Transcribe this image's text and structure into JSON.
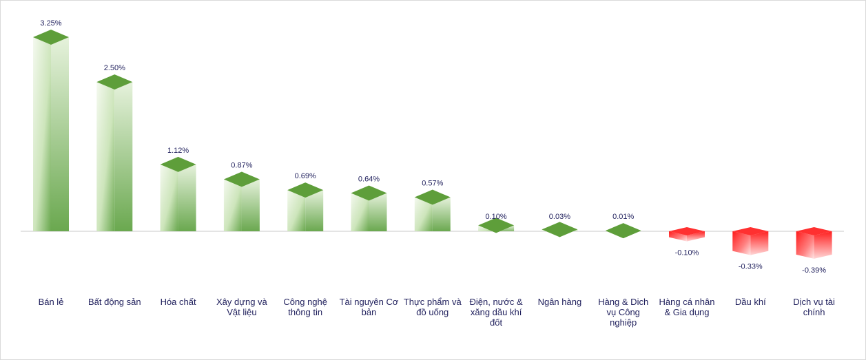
{
  "chart_data": {
    "type": "bar",
    "categories": [
      "Bán lẻ",
      "Bất động sản",
      "Hóa chất",
      "Xây dựng và Vật liệu",
      "Công nghệ thông tin",
      "Tài nguyên Cơ bản",
      "Thực phẩm và đồ uống",
      "Điện, nước & xăng dầu khí đốt",
      "Ngân hàng",
      "Hàng & Dich vụ Công nghiệp",
      "Hàng cá nhân & Gia dụng",
      "Dầu khí",
      "Dịch vụ tài chính"
    ],
    "category_lines": [
      [
        "Bán lẻ"
      ],
      [
        "Bất động sản"
      ],
      [
        "Hóa chất"
      ],
      [
        "Xây dựng và",
        "Vật liệu"
      ],
      [
        "Công nghệ",
        "thông tin"
      ],
      [
        "Tài nguyên Cơ",
        "bản"
      ],
      [
        "Thực phẩm và",
        "đồ uống"
      ],
      [
        "Điện, nước &",
        "xăng dầu khí",
        "đốt"
      ],
      [
        "Ngân hàng"
      ],
      [
        "Hàng & Dich",
        "vụ Công",
        "nghiệp"
      ],
      [
        "Hàng cá nhân",
        "& Gia dụng"
      ],
      [
        "Dầu khí"
      ],
      [
        "Dịch vụ tài",
        "chính"
      ]
    ],
    "values": [
      3.25,
      2.5,
      1.12,
      0.87,
      0.69,
      0.64,
      0.57,
      0.1,
      0.03,
      0.01,
      -0.1,
      -0.33,
      -0.39
    ],
    "value_labels": [
      "3.25%",
      "2.50%",
      "1.12%",
      "0.87%",
      "0.69%",
      "0.64%",
      "0.57%",
      "0.10%",
      "0.03%",
      "0.01%",
      "-0.10%",
      "-0.33%",
      "-0.39%"
    ],
    "title": "",
    "xlabel": "",
    "ylabel": "",
    "ylim": [
      -0.5,
      3.5
    ],
    "grid": false,
    "legend": "none",
    "colors": {
      "positive_dark": "#6aa84f",
      "positive_light": "#e8f3df",
      "positive_top": "#5e9e3a",
      "negative_dark": "#ff0000",
      "negative_light": "#ffe5e5",
      "negative_top": "#ff3030",
      "axis": "#c8c8c8",
      "text": "#1f1f5c"
    }
  }
}
